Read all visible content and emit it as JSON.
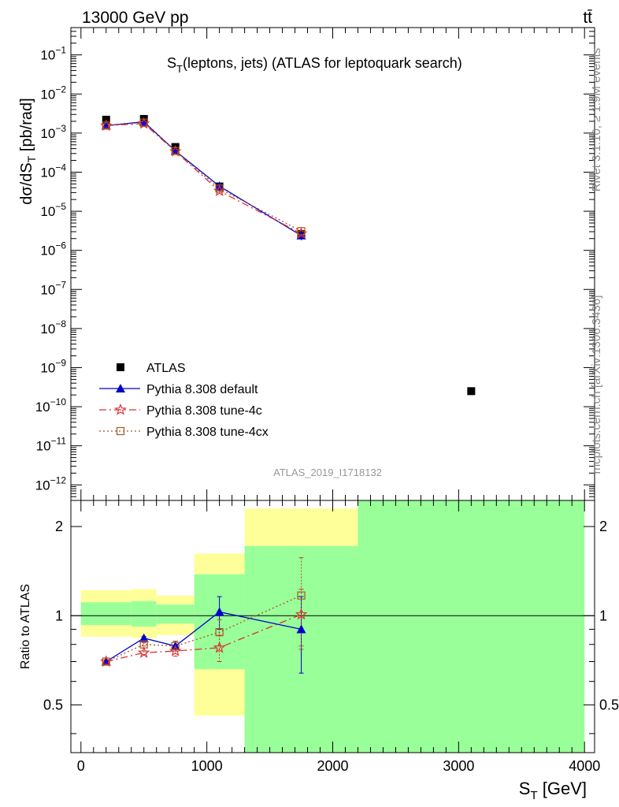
{
  "header": {
    "left": "13000 GeV pp",
    "right": "tt̄"
  },
  "side_text": {
    "rivet": "Rivet 3.1.10, ≥ 1.9M events",
    "mcplots": "mcplots.cern.ch [arXiv:1306.3436]"
  },
  "watermark": "ATLAS_2019_I1718132",
  "chart_data": [
    {
      "type": "line",
      "title": "S_T(leptons, jets) (ATLAS for leptoquark search)",
      "ylabel": "dσ/dS_T [pb/rad]",
      "yscale": "log",
      "ylim": [
        4e-13,
        0.5
      ],
      "xlim": [
        -80,
        4080
      ],
      "ytick_labels": [
        "10^-12",
        "10^-11",
        "10^-10",
        "10^-9",
        "10^-8",
        "10^-7",
        "10^-6",
        "10^-5",
        "10^-4",
        "10^-3",
        "10^-2",
        "10^-1"
      ],
      "legend": {
        "position": "bottom-left",
        "entries": [
          "ATLAS",
          "Pythia 8.308 default",
          "Pythia 8.308 tune-4c",
          "Pythia 8.308 tune-4cx"
        ]
      },
      "series": [
        {
          "name": "ATLAS",
          "color": "#000000",
          "marker": "square",
          "x": [
            200,
            500,
            750,
            1100,
            1750,
            3100
          ],
          "y": [
            0.0022,
            0.0023,
            0.00044,
            4.3e-05,
            2.6e-06,
            2.5e-10
          ]
        },
        {
          "name": "Pythia 8.308 default",
          "color": "#0000cc",
          "marker": "triangle",
          "line": "solid",
          "x": [
            200,
            500,
            750,
            1100,
            1750
          ],
          "y": [
            0.00155,
            0.00195,
            0.00035,
            4.4e-05,
            2.4e-06
          ],
          "yerr": [
            5e-05,
            6e-05,
            1e-05,
            3e-06,
            6e-07
          ]
        },
        {
          "name": "Pythia 8.308 tune-4c",
          "color": "#dd3333",
          "marker": "star",
          "line": "dashdot",
          "x": [
            200,
            500,
            750,
            1100,
            1750
          ],
          "y": [
            0.00155,
            0.00175,
            0.00034,
            3.3e-05,
            2.7e-06
          ]
        },
        {
          "name": "Pythia 8.308 tune-4cx",
          "color": "#aa5522",
          "marker": "opensquare",
          "line": "dotted",
          "x": [
            200,
            500,
            750,
            1100,
            1750
          ],
          "y": [
            0.00155,
            0.00185,
            0.00035,
            3.8e-05,
            3.1e-06
          ]
        }
      ]
    },
    {
      "type": "line",
      "ylabel": "Ratio to ATLAS",
      "xlabel": "S_T [GeV]",
      "yscale": "log",
      "ylim": [
        0.345,
        2.45
      ],
      "xlim": [
        -80,
        4080
      ],
      "xtick_labels": [
        "0",
        "1000",
        "2000",
        "3000",
        "4000"
      ],
      "ytick_labels": [
        "0.5",
        "1",
        "2"
      ],
      "bands": [
        {
          "x0": 0,
          "x1": 400,
          "yellow": [
            0.85,
            1.22
          ],
          "green": [
            0.93,
            1.11
          ]
        },
        {
          "x0": 400,
          "x1": 600,
          "yellow": [
            0.84,
            1.23
          ],
          "green": [
            0.92,
            1.12
          ]
        },
        {
          "x0": 600,
          "x1": 900,
          "yellow": [
            0.86,
            1.17
          ],
          "green": [
            0.94,
            1.09
          ]
        },
        {
          "x0": 900,
          "x1": 1300,
          "yellow": [
            0.46,
            1.62
          ],
          "green": [
            0.66,
            1.38
          ]
        },
        {
          "x0": 1300,
          "x1": 2200,
          "yellow": [
            0.345,
            2.3
          ],
          "green": [
            0.345,
            1.72
          ]
        },
        {
          "x0": 2200,
          "x1": 4000,
          "yellow": [
            0.345,
            2.45
          ],
          "green": [
            0.345,
            2.45
          ]
        }
      ],
      "series": [
        {
          "name": "Pythia 8.308 default",
          "color": "#0000cc",
          "marker": "triangle",
          "line": "solid",
          "x": [
            200,
            500,
            750,
            1100,
            1750
          ],
          "y": [
            0.7,
            0.84,
            0.79,
            1.03,
            0.9
          ],
          "yerr": [
            0.01,
            0.01,
            0.03,
            0.13,
            0.26
          ]
        },
        {
          "name": "Pythia 8.308 tune-4c",
          "color": "#dd3333",
          "marker": "star",
          "line": "dashdot",
          "x": [
            200,
            500,
            750,
            1100,
            1750
          ],
          "y": [
            0.7,
            0.75,
            0.76,
            0.78,
            1.01
          ],
          "yerr": [
            0.01,
            0.01,
            0.03,
            0.08,
            0.22
          ]
        },
        {
          "name": "Pythia 8.308 tune-4cx",
          "color": "#aa5522",
          "marker": "opensquare",
          "line": "dotted",
          "x": [
            200,
            500,
            750,
            1100,
            1750
          ],
          "y": [
            0.7,
            0.8,
            0.79,
            0.88,
            1.17
          ],
          "yerr": [
            0.01,
            0.01,
            0.03,
            0.09,
            0.4
          ]
        }
      ]
    }
  ]
}
